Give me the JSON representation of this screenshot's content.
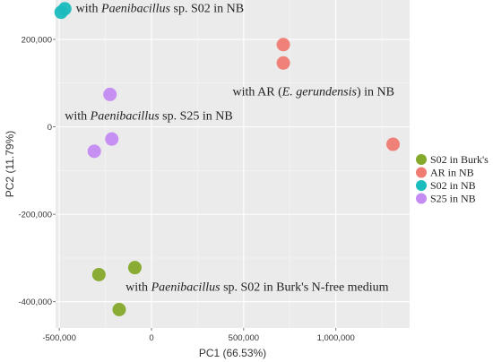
{
  "chart_data": {
    "type": "scatter",
    "xlabel": "PC1 (66.53%)",
    "ylabel": "PC2 (11.79%)",
    "xlim": [
      -520000,
      1400000
    ],
    "ylim": [
      -460000,
      290000
    ],
    "xticks": [
      -500000,
      0,
      500000,
      1000000
    ],
    "xtick_labels": [
      "-500,000",
      "0",
      "500,000",
      "1,000,000"
    ],
    "yticks": [
      -400000,
      -200000,
      0,
      200000
    ],
    "ytick_labels": [
      "-400,000",
      "-200,000",
      "0",
      "200,000"
    ],
    "grid": true,
    "legend_position": "right",
    "series": [
      {
        "name": "S02 in Burk's",
        "color": "#85a92b",
        "points": [
          [
            -285000,
            -338000
          ],
          [
            -90000,
            -322000
          ],
          [
            -175000,
            -418000
          ]
        ]
      },
      {
        "name": "AR in NB",
        "color": "#ef7b73",
        "points": [
          [
            715000,
            188000
          ],
          [
            715000,
            146000
          ],
          [
            1310000,
            -40000
          ]
        ]
      },
      {
        "name": "S02 in NB",
        "color": "#1bbcbe",
        "points": [
          [
            -490000,
            262000
          ],
          [
            -470000,
            270000
          ]
        ]
      },
      {
        "name": "S25 in NB",
        "color": "#c48bf2",
        "points": [
          [
            -225000,
            74000
          ],
          [
            -215000,
            -28000
          ],
          [
            -310000,
            -56000
          ]
        ]
      }
    ],
    "annotations": [
      {
        "parts": [
          {
            "t": "with ",
            "i": false
          },
          {
            "t": "Paenibacillus",
            "i": true
          },
          {
            "t": " sp. S02 in NB",
            "i": false
          }
        ],
        "x": -410000,
        "y": 262000
      },
      {
        "parts": [
          {
            "t": "with AR (",
            "i": false
          },
          {
            "t": "E. gerundensis",
            "i": true
          },
          {
            "t": ") in NB",
            "i": false
          }
        ],
        "x": 440000,
        "y": 72000
      },
      {
        "parts": [
          {
            "t": "with ",
            "i": false
          },
          {
            "t": "Paenibacillus",
            "i": true
          },
          {
            "t": " sp. S25 in NB",
            "i": false
          }
        ],
        "x": -470000,
        "y": 16000
      },
      {
        "parts": [
          {
            "t": "with ",
            "i": false
          },
          {
            "t": "Paenibacillus",
            "i": true
          },
          {
            "t": " sp. S02 in Burk's N-free medium",
            "i": false
          }
        ],
        "x": -140000,
        "y": -375000
      }
    ]
  }
}
